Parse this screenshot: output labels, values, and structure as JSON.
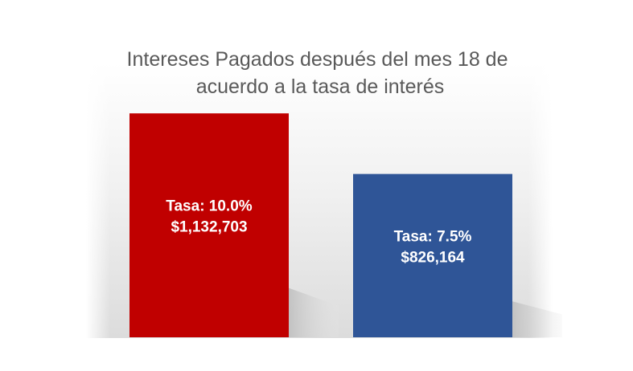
{
  "chart_data": {
    "type": "bar",
    "title": [
      "Intereses Pagados después del mes 18 de",
      "acuerdo a la tasa de interés"
    ],
    "categories": [
      "Tasa: 10.0%",
      "Tasa: 7.5%"
    ],
    "values": [
      1132703,
      826164
    ],
    "value_labels": [
      "$1,132,703",
      "$826,164"
    ],
    "colors": [
      "#C00000",
      "#2F5597"
    ],
    "ylim": [
      0,
      1300000
    ],
    "xlabel": "",
    "ylabel": "",
    "grid": false,
    "legend": false
  }
}
